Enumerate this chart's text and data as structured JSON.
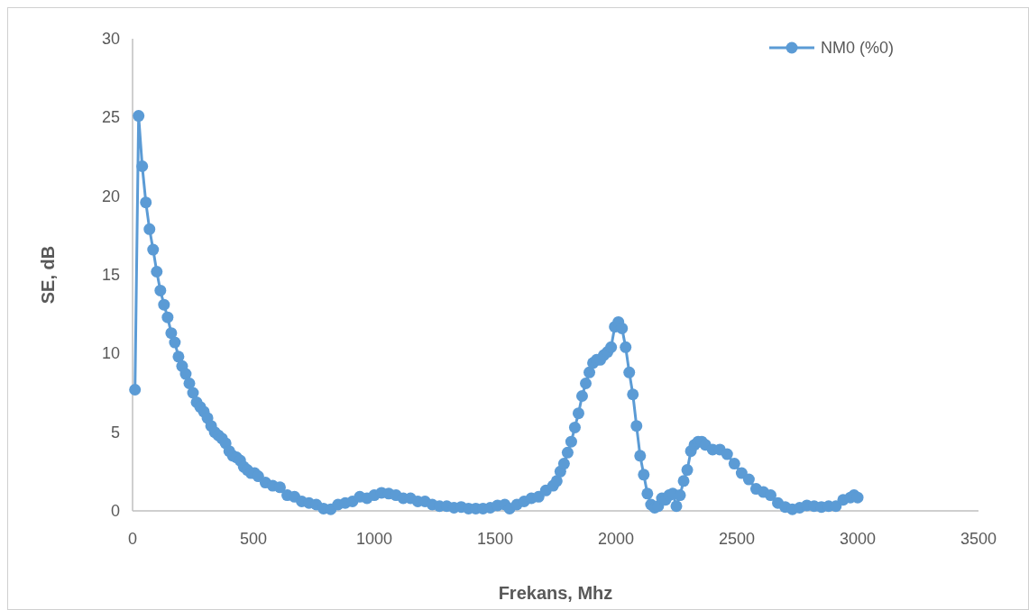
{
  "chart_data": {
    "type": "line",
    "xlabel": "Frekans, Mhz",
    "ylabel": "SE, dB",
    "xlim": [
      0,
      3500
    ],
    "xticks": [
      0,
      500,
      1000,
      1500,
      2000,
      2500,
      3000,
      3500
    ],
    "ylim": [
      0,
      30
    ],
    "yticks": [
      0,
      5,
      10,
      15,
      20,
      25,
      30
    ],
    "grid": false,
    "legend": "top right",
    "marker": "circle",
    "line_style": "solid",
    "series": [
      {
        "name": "NM0 (%0)",
        "color": "#5b9bd5",
        "x": [
          10,
          25,
          40,
          55,
          70,
          85,
          100,
          115,
          130,
          145,
          160,
          175,
          190,
          205,
          220,
          235,
          250,
          265,
          280,
          295,
          310,
          325,
          340,
          355,
          370,
          385,
          400,
          415,
          430,
          445,
          460,
          475,
          490,
          505,
          520,
          550,
          580,
          610,
          640,
          670,
          700,
          730,
          760,
          790,
          820,
          850,
          880,
          910,
          940,
          970,
          1000,
          1030,
          1060,
          1090,
          1120,
          1150,
          1180,
          1210,
          1240,
          1270,
          1300,
          1330,
          1360,
          1390,
          1420,
          1450,
          1480,
          1510,
          1540,
          1560,
          1590,
          1620,
          1650,
          1680,
          1710,
          1740,
          1755,
          1770,
          1785,
          1800,
          1815,
          1830,
          1845,
          1860,
          1875,
          1890,
          1905,
          1920,
          1935,
          1950,
          1965,
          1980,
          1995,
          2010,
          2025,
          2040,
          2055,
          2070,
          2085,
          2100,
          2115,
          2130,
          2145,
          2160,
          2175,
          2190,
          2205,
          2220,
          2235,
          2250,
          2265,
          2280,
          2295,
          2310,
          2325,
          2340,
          2355,
          2370,
          2400,
          2430,
          2460,
          2490,
          2520,
          2550,
          2580,
          2610,
          2640,
          2670,
          2700,
          2730,
          2760,
          2790,
          2820,
          2850,
          2880,
          2910,
          2940,
          2970,
          2985,
          3000
        ],
        "values": [
          7.7,
          25.1,
          21.9,
          19.6,
          17.9,
          16.6,
          15.2,
          14.0,
          13.1,
          12.3,
          11.3,
          10.7,
          9.8,
          9.2,
          8.7,
          8.1,
          7.5,
          6.9,
          6.6,
          6.3,
          5.9,
          5.4,
          5.0,
          4.8,
          4.6,
          4.3,
          3.8,
          3.5,
          3.4,
          3.2,
          2.8,
          2.6,
          2.4,
          2.4,
          2.2,
          1.8,
          1.6,
          1.5,
          1.0,
          0.9,
          0.6,
          0.5,
          0.4,
          0.15,
          0.1,
          0.4,
          0.5,
          0.6,
          0.9,
          0.8,
          1.0,
          1.15,
          1.1,
          1.0,
          0.8,
          0.8,
          0.6,
          0.6,
          0.4,
          0.3,
          0.3,
          0.2,
          0.25,
          0.15,
          0.15,
          0.15,
          0.2,
          0.35,
          0.4,
          0.15,
          0.4,
          0.6,
          0.8,
          0.9,
          1.3,
          1.6,
          1.9,
          2.5,
          3.0,
          3.7,
          4.4,
          5.3,
          6.2,
          7.3,
          8.1,
          8.8,
          9.4,
          9.6,
          9.6,
          9.9,
          10.1,
          10.4,
          11.7,
          12.0,
          11.6,
          10.4,
          8.8,
          7.4,
          5.4,
          3.5,
          2.3,
          1.1,
          0.4,
          0.2,
          0.3,
          0.8,
          0.7,
          1.0,
          1.1,
          0.3,
          1.0,
          1.9,
          2.6,
          3.8,
          4.2,
          4.4,
          4.4,
          4.2,
          3.9,
          3.9,
          3.6,
          3.0,
          2.4,
          2.0,
          1.4,
          1.2,
          1.0,
          0.5,
          0.25,
          0.1,
          0.2,
          0.35,
          0.3,
          0.25,
          0.3,
          0.3,
          0.7,
          0.85,
          1.0,
          0.85
        ]
      }
    ]
  }
}
